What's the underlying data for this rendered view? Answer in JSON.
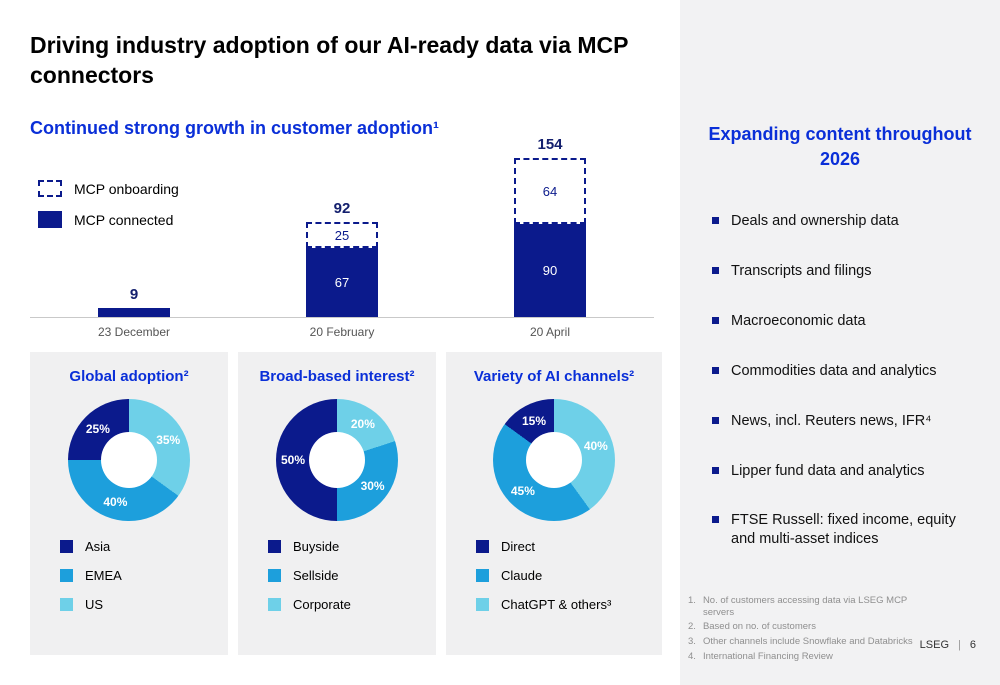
{
  "slide": {
    "title": "Driving industry adoption of our AI-ready data via MCP connectors"
  },
  "colors": {
    "navy": "#0b1a8c",
    "blue": "#1d9fdc",
    "cyan": "#6ed0e8",
    "heading": "#0a2fd8",
    "axis": "#c9c9c9",
    "panel_bg": "#f0f0f1",
    "sidebar_bg": "#f2f2f3"
  },
  "chart_data": [
    {
      "type": "bar",
      "stacked": true,
      "title": "Continued strong growth in customer adoption¹",
      "categories": [
        "23 December",
        "20 February",
        "20 April"
      ],
      "series": [
        {
          "name": "MCP connected",
          "values": [
            9,
            67,
            90
          ],
          "style": "solid"
        },
        {
          "name": "MCP onboarding",
          "values": [
            0,
            25,
            64
          ],
          "style": "dashed"
        }
      ],
      "totals": [
        9,
        92,
        154
      ],
      "legend": [
        {
          "label": "MCP onboarding",
          "style": "dashed"
        },
        {
          "label": "MCP connected",
          "style": "solid"
        }
      ],
      "ylim": [
        0,
        160
      ],
      "grid": false
    },
    {
      "type": "pie",
      "title": "Global adoption²",
      "segments": [
        {
          "label": "US",
          "pct": 35,
          "color": "cyan"
        },
        {
          "label": "EMEA",
          "pct": 40,
          "color": "blue"
        },
        {
          "label": "Asia",
          "pct": 25,
          "color": "navy"
        }
      ],
      "legend": [
        {
          "label": "Asia",
          "color": "navy"
        },
        {
          "label": "EMEA",
          "color": "blue"
        },
        {
          "label": "US",
          "color": "cyan"
        }
      ]
    },
    {
      "type": "pie",
      "title": "Broad-based interest²",
      "segments": [
        {
          "label": "Corporate",
          "pct": 20,
          "color": "cyan"
        },
        {
          "label": "Sellside",
          "pct": 30,
          "color": "blue"
        },
        {
          "label": "Buyside",
          "pct": 50,
          "color": "navy"
        }
      ],
      "legend": [
        {
          "label": "Buyside",
          "color": "navy"
        },
        {
          "label": "Sellside",
          "color": "blue"
        },
        {
          "label": "Corporate",
          "color": "cyan"
        }
      ]
    },
    {
      "type": "pie",
      "title": "Variety of AI channels²",
      "segments": [
        {
          "label": "ChatGPT & others³",
          "pct": 40,
          "color": "cyan"
        },
        {
          "label": "Claude",
          "pct": 45,
          "color": "blue"
        },
        {
          "label": "Direct",
          "pct": 15,
          "color": "navy"
        }
      ],
      "legend": [
        {
          "label": "Direct",
          "color": "navy"
        },
        {
          "label": "Claude",
          "color": "blue"
        },
        {
          "label": "ChatGPT & others³",
          "color": "cyan"
        }
      ]
    }
  ],
  "sidebar": {
    "heading": "Expanding content throughout 2026",
    "items": [
      "Deals and ownership data",
      "Transcripts and filings",
      "Macroeconomic data",
      "Commodities data and analytics",
      "News, incl. Reuters news, IFR⁴",
      "Lipper fund data and analytics",
      "FTSE Russell: fixed income, equity and multi-asset indices"
    ],
    "footnotes": [
      {
        "num": "1.",
        "text": "No. of customers accessing data via LSEG MCP servers"
      },
      {
        "num": "2.",
        "text": "Based on no. of customers"
      },
      {
        "num": "3.",
        "text": "Other channels include Snowflake and Databricks"
      },
      {
        "num": "4.",
        "text": "International Financing Review"
      }
    ],
    "footer": {
      "brand": "LSEG",
      "separator": "|",
      "page": "6"
    }
  }
}
